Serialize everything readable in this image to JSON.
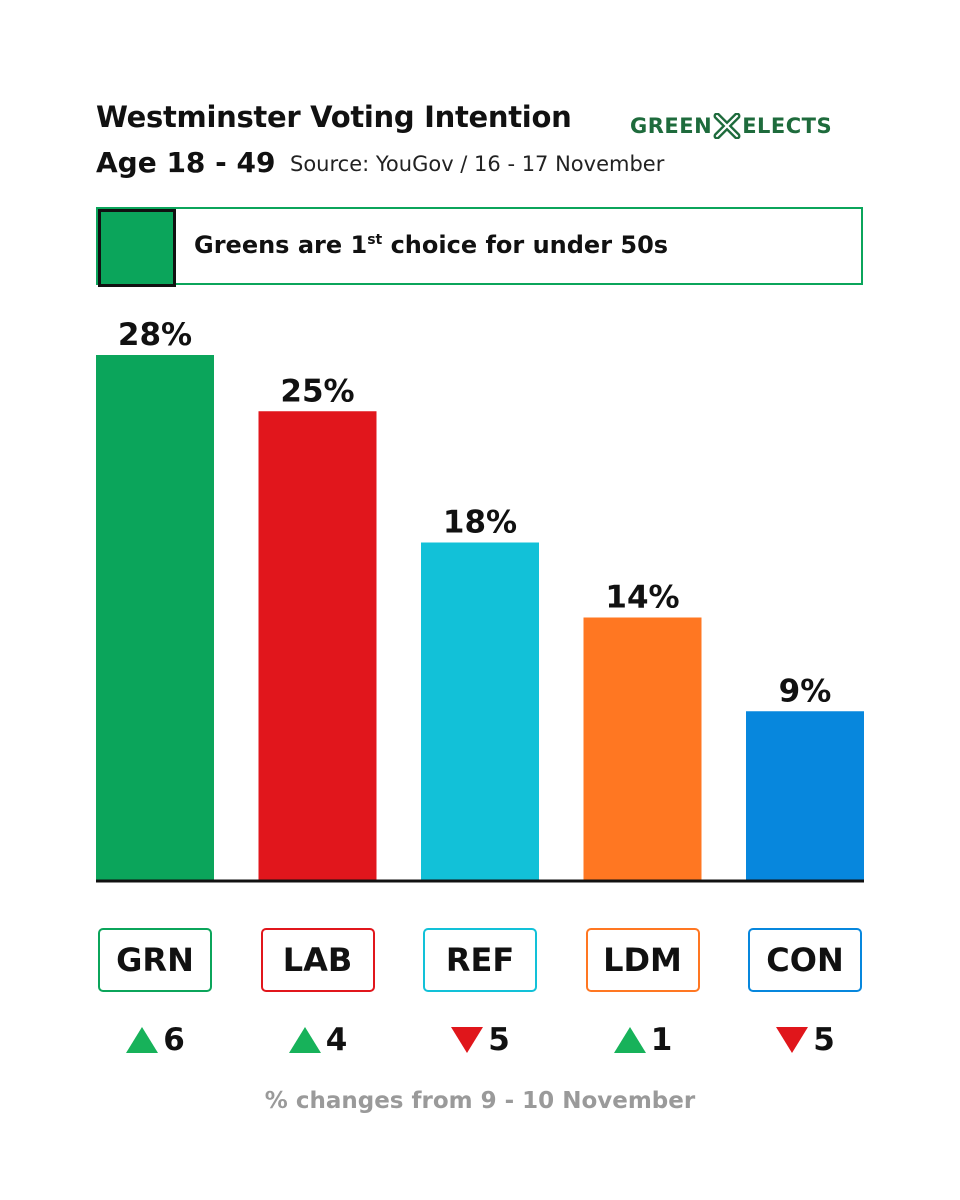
{
  "header": {
    "title": "Westminster Voting Intention",
    "subtitle": "Age 18 - 49",
    "source": "Source: YouGov / 16 - 17 November",
    "brand_left": "GREEN",
    "brand_right": "ELECTS",
    "brand_icon": "x-mark-icon"
  },
  "callout": {
    "text_before": "Greens are 1",
    "superscript": "st",
    "text_after": " choice for under 50s"
  },
  "chart_data": {
    "type": "bar",
    "categories": [
      "GRN",
      "LAB",
      "REF",
      "LDM",
      "CON"
    ],
    "values": [
      28,
      25,
      18,
      14,
      9
    ],
    "value_labels": [
      "28%",
      "25%",
      "18%",
      "14%",
      "9%"
    ],
    "colors": [
      "#0ba55b",
      "#e1161c",
      "#12c1d8",
      "#ff7722",
      "#0787dd"
    ],
    "changes": [
      {
        "direction": "up",
        "value": "6"
      },
      {
        "direction": "up",
        "value": "4"
      },
      {
        "direction": "down",
        "value": "5"
      },
      {
        "direction": "up",
        "value": "1"
      },
      {
        "direction": "down",
        "value": "5"
      }
    ],
    "ylim": [
      0,
      28
    ],
    "title": "Westminster Voting Intention",
    "subtitle": "Age 18 - 49"
  },
  "colors": {
    "up": "#17b25a",
    "down": "#e0161b",
    "brand": "#1e6b3c",
    "footnote": "#9a9a9a"
  },
  "footnote": "% changes from 9 - 10 November"
}
